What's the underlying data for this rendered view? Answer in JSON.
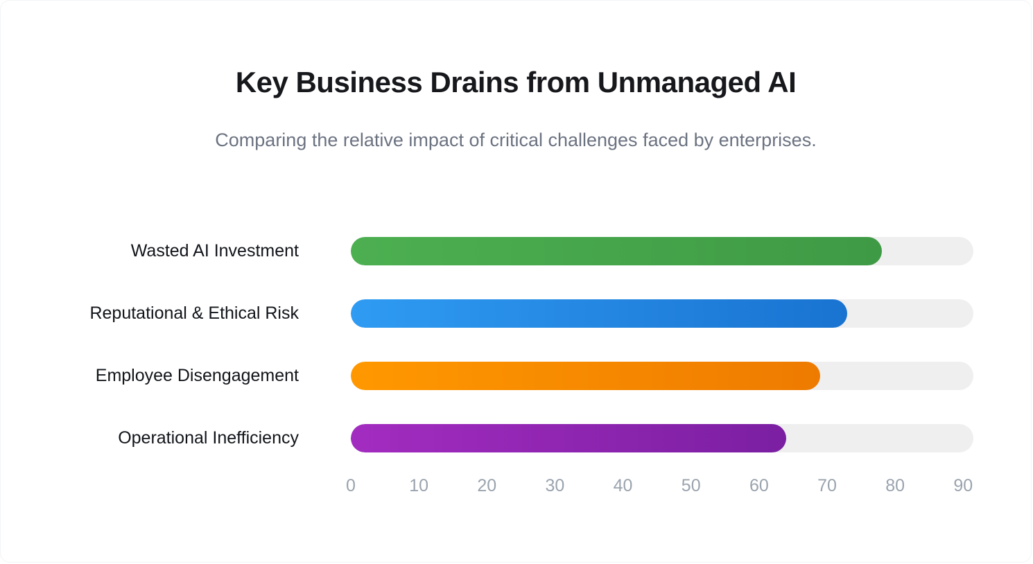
{
  "chart_data": {
    "type": "bar",
    "orientation": "horizontal",
    "title": "Key Business Drains from Unmanaged AI",
    "subtitle": "Comparing the relative impact of critical challenges faced by enterprises.",
    "categories": [
      "Wasted AI Investment",
      "Reputational & Ethical Risk",
      "Employee Disengagement",
      "Operational Inefficiency"
    ],
    "values": [
      78,
      73,
      69,
      64
    ],
    "bar_gradients": [
      {
        "from": "#4CAF50",
        "to": "#3F9A45"
      },
      {
        "from": "#2F9BF2",
        "to": "#1973D1"
      },
      {
        "from": "#FF9800",
        "to": "#EE7B00"
      },
      {
        "from": "#A32CC0",
        "to": "#7B1FA2"
      }
    ],
    "track_color": "#EFEFEF",
    "xlabel": "",
    "ylabel": "",
    "xticks": [
      0,
      10,
      20,
      30,
      40,
      50,
      60,
      70,
      80,
      90
    ],
    "xlim": [
      0,
      91.5
    ],
    "tick_color": "#9AA3AE",
    "category_label_color": "#111419",
    "grid": false,
    "legend": false
  }
}
